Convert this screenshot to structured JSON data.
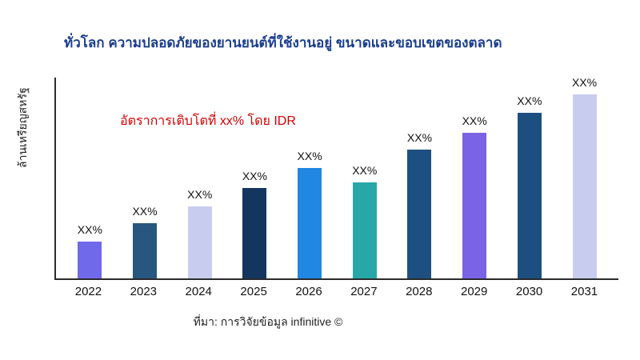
{
  "title": "ทั่วโลก ความปลอดภัยของยานยนต์ที่ใช้งานอยู่ ขนาดและขอบเขตของตลาด",
  "ylabel": "ล้านเหรียญสหรัฐ",
  "annotation": "อัตราการเติบโตที่ xx% โดย IDR",
  "source": "ที่มา: การวิจัยข้อมูล infinitive ©",
  "chart_data": {
    "type": "bar",
    "title": "ทั่วโลก ความปลอดภัยของยานยนต์ที่ใช้งานอยู่ ขนาดและขอบเขตของตลาด",
    "xlabel": "",
    "ylabel": "ล้านเหรียญสหรัฐ",
    "categories": [
      "2022",
      "2023",
      "2024",
      "2025",
      "2026",
      "2027",
      "2028",
      "2029",
      "2030",
      "2031"
    ],
    "values": [
      20,
      30,
      39,
      49,
      60,
      52,
      70,
      79,
      90,
      100
    ],
    "values_note": "relative bar heights in percent of tallest bar; actual values not shown, all bars labeled XX%",
    "bar_labels": [
      "XX%",
      "XX%",
      "XX%",
      "XX%",
      "XX%",
      "XX%",
      "XX%",
      "XX%",
      "XX%",
      "XX%"
    ],
    "colors": [
      "#7069ea",
      "#27567f",
      "#c8cdf0",
      "#14355f",
      "#2087e2",
      "#28a7a8",
      "#1d5080",
      "#7b63e6",
      "#1c4f80",
      "#c8cdf0"
    ],
    "annotation": {
      "text": "อัตราการเติบโตที่ xx% โดย IDR",
      "color": "#d40000"
    },
    "title_color": "#1a3e8f",
    "grid": "off",
    "legend": "none",
    "ylim": [
      0,
      100
    ]
  }
}
